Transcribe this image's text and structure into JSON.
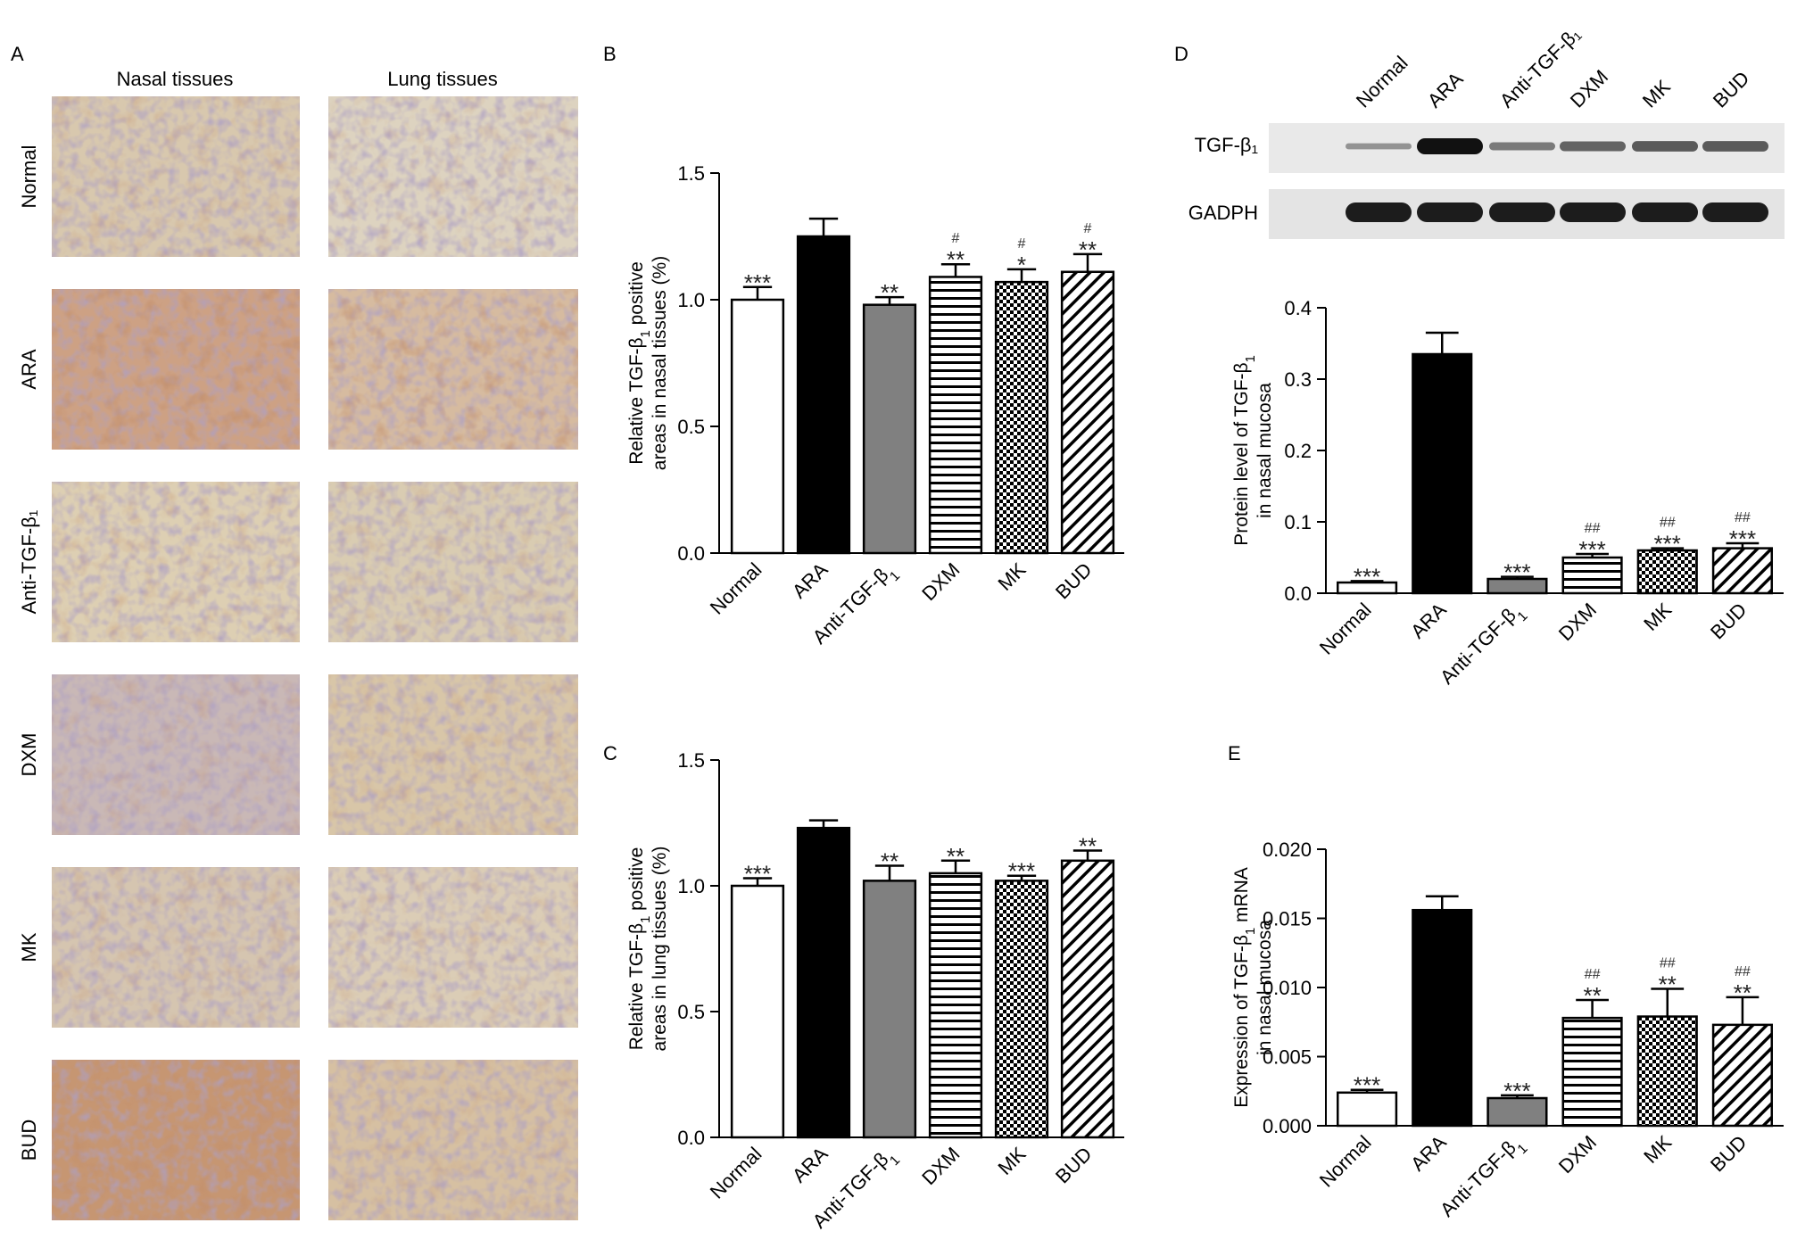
{
  "panel_labels": {
    "A": "A",
    "B": "B",
    "C": "C",
    "D": "D",
    "E": "E"
  },
  "histology": {
    "column_headers": [
      "Nasal tissues",
      "Lung tissues"
    ],
    "row_labels": [
      "Normal",
      "ARA",
      "Anti-TGF-β₁",
      "DXM",
      "MK",
      "BUD"
    ]
  },
  "western_blot": {
    "lane_labels": [
      "Normal",
      "ARA",
      "Anti-TGF-β₁",
      "DXM",
      "MK",
      "BUD"
    ],
    "rows": [
      {
        "label": "TGF-β₁",
        "intensity": [
          0.2,
          1.0,
          0.35,
          0.5,
          0.55,
          0.55
        ]
      },
      {
        "label": "GADPH",
        "intensity": [
          1,
          1,
          1,
          1,
          1,
          1
        ]
      }
    ]
  },
  "chart_data": [
    {
      "panel": "B",
      "type": "bar",
      "categories": [
        "Normal",
        "ARA",
        "Anti-TGF-β₁",
        "DXM",
        "MK",
        "BUD"
      ],
      "values": [
        1.0,
        1.25,
        0.98,
        1.09,
        1.07,
        1.11
      ],
      "errors": [
        0.05,
        0.07,
        0.03,
        0.05,
        0.05,
        0.07
      ],
      "annotations": [
        "***",
        "",
        "**",
        "**",
        "*",
        "**"
      ],
      "hash_annotations": [
        "",
        "",
        "",
        "#",
        "#",
        "#"
      ],
      "ylabel": [
        "Relative TGF-β₁ positive",
        "areas in nasal tissues (%)"
      ],
      "ylim": [
        0,
        1.5
      ],
      "yticks": [
        "0.0",
        "0.5",
        "1.0",
        "1.5"
      ]
    },
    {
      "panel": "C",
      "type": "bar",
      "categories": [
        "Normal",
        "ARA",
        "Anti-TGF-β₁",
        "DXM",
        "MK",
        "BUD"
      ],
      "values": [
        1.0,
        1.23,
        1.02,
        1.05,
        1.02,
        1.1
      ],
      "errors": [
        0.03,
        0.03,
        0.06,
        0.05,
        0.02,
        0.04
      ],
      "annotations": [
        "***",
        "",
        "**",
        "**",
        "***",
        "**"
      ],
      "hash_annotations": [
        "",
        "",
        "",
        "",
        "",
        ""
      ],
      "ylabel": [
        "Relative TGF-β₁ positive",
        "areas in lung tissues (%)"
      ],
      "ylim": [
        0,
        1.5
      ],
      "yticks": [
        "0.0",
        "0.5",
        "1.0",
        "1.5"
      ]
    },
    {
      "panel": "D",
      "type": "bar",
      "categories": [
        "Normal",
        "ARA",
        "Anti-TGF-β₁",
        "DXM",
        "MK",
        "BUD"
      ],
      "values": [
        0.015,
        0.335,
        0.02,
        0.05,
        0.06,
        0.063
      ],
      "errors": [
        0.002,
        0.03,
        0.003,
        0.005,
        0.003,
        0.007
      ],
      "annotations": [
        "***",
        "",
        "***",
        "***",
        "***",
        "***"
      ],
      "hash_annotations": [
        "",
        "",
        "",
        "##",
        "##",
        "##"
      ],
      "ylabel": [
        "Protein level of TGF-β₁",
        "in nasal mucosa"
      ],
      "ylim": [
        0,
        0.4
      ],
      "yticks": [
        "0.0",
        "0.1",
        "0.2",
        "0.3",
        "0.4"
      ]
    },
    {
      "panel": "E",
      "type": "bar",
      "categories": [
        "Normal",
        "ARA",
        "Anti-TGF-β₁",
        "DXM",
        "MK",
        "BUD"
      ],
      "values": [
        0.0024,
        0.0156,
        0.002,
        0.0078,
        0.0079,
        0.0073
      ],
      "errors": [
        0.0002,
        0.001,
        0.0002,
        0.0013,
        0.002,
        0.002
      ],
      "annotations": [
        "***",
        "",
        "***",
        "**",
        "**",
        "**"
      ],
      "hash_annotations": [
        "",
        "",
        "",
        "##",
        "##",
        "##"
      ],
      "ylabel": [
        "Expression of TGF-β₁ mRNA",
        "in nasal mucosa"
      ],
      "ylim": [
        0,
        0.02
      ],
      "yticks": [
        "0.000",
        "0.005",
        "0.010",
        "0.015",
        "0.020"
      ]
    }
  ]
}
